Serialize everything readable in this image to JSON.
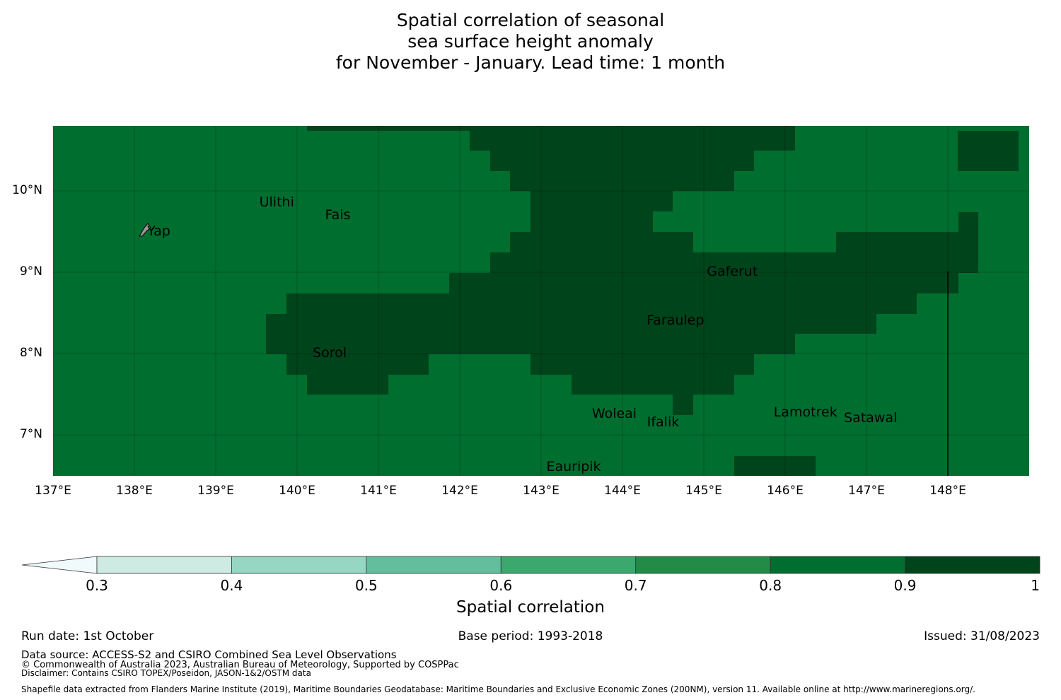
{
  "title": {
    "line1": "Spatial correlation of seasonal",
    "line2": "sea surface height anomaly",
    "line3": "for November - January. Lead time: 1 month"
  },
  "map": {
    "lon_range": [
      137.0,
      149.0
    ],
    "lat_range": [
      6.5,
      10.8
    ],
    "lat_ticks": [
      "10°N",
      "9°N",
      "8°N",
      "7°N"
    ],
    "lat_tick_values": [
      10,
      9,
      8,
      7
    ],
    "lon_ticks": [
      "137°E",
      "138°E",
      "139°E",
      "140°E",
      "141°E",
      "142°E",
      "143°E",
      "144°E",
      "145°E",
      "146°E",
      "147°E",
      "148°E"
    ],
    "lon_tick_values": [
      137,
      138,
      139,
      140,
      141,
      142,
      143,
      144,
      145,
      146,
      147,
      148
    ],
    "background_class_color": "#006e2f",
    "high_class_color": "#00441b",
    "places": [
      {
        "name": "Ulithi",
        "lon": 139.75,
        "lat": 9.85
      },
      {
        "name": "Fais",
        "lon": 140.5,
        "lat": 9.7
      },
      {
        "name": "Yap",
        "lon": 138.3,
        "lat": 9.5
      },
      {
        "name": "Gaferut",
        "lon": 145.35,
        "lat": 9.0
      },
      {
        "name": "Faraulep",
        "lon": 144.65,
        "lat": 8.4
      },
      {
        "name": "Sorol",
        "lon": 140.4,
        "lat": 8.0
      },
      {
        "name": "Woleai",
        "lon": 143.9,
        "lat": 7.25
      },
      {
        "name": "Ifalik",
        "lon": 144.5,
        "lat": 7.15
      },
      {
        "name": "Lamotrek",
        "lon": 146.25,
        "lat": 7.27
      },
      {
        "name": "Satawal",
        "lon": 147.05,
        "lat": 7.2
      },
      {
        "name": "Eauripik",
        "lon": 143.4,
        "lat": 6.6
      }
    ]
  },
  "colorbar": {
    "label": "Spatial correlation",
    "ticks": [
      "0.3",
      "0.4",
      "0.5",
      "0.6",
      "0.7",
      "0.8",
      "0.9",
      "1"
    ],
    "tick_values": [
      0.3,
      0.4,
      0.5,
      0.6,
      0.7,
      0.8,
      0.9,
      1.0
    ],
    "extend_color": "#f0f9fb",
    "colors": [
      "#cdebe3",
      "#97d6c3",
      "#62be9d",
      "#3ca86d",
      "#238b45",
      "#006e2f",
      "#00441b"
    ]
  },
  "footer": {
    "run_date": "Run date: 1st October",
    "base_period": "Base period: 1993-2018",
    "issued": "Issued: 31/08/2023",
    "data_source": "Data source: ACCESS-S2 and CSIRO Combined Sea Level Observations",
    "copyright": "© Commonwealth of Australia 2023, Australian Bureau of Meteorology, Supported by COSPPac",
    "disclaimer": "Disclaimer: Contains CSIRO TOPEX/Poseidon, JASON-1&2/OSTM data",
    "shapefile": "Shapefile data extracted from Flanders Marine Institute (2019), Maritime Boundaries Geodatabase: Maritime Boundaries and Exclusive Economic Zones (200NM), version 11. Available online at http://www.marineregions.org/."
  }
}
